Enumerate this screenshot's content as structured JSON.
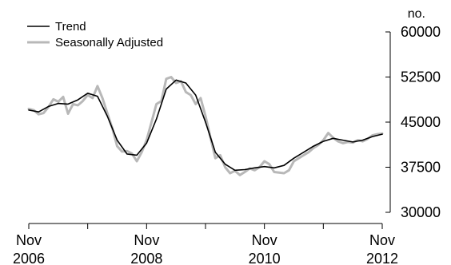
{
  "chart_data": {
    "type": "line",
    "title": "",
    "xlabel": "",
    "ylabel": "",
    "unit_label": "no.",
    "ylim": [
      30000,
      60000
    ],
    "yticks": [
      30000,
      37500,
      45000,
      52500,
      60000
    ],
    "ytick_labels": [
      "30000",
      "37500",
      "45000",
      "52500",
      "60000"
    ],
    "xlim": [
      "2006-11",
      "2012-11"
    ],
    "xtick_labels": [
      {
        "month": "Nov",
        "year": "2006",
        "x": "2006-11"
      },
      {
        "month": "Nov",
        "year": "2008",
        "x": "2008-11"
      },
      {
        "month": "Nov",
        "year": "2010",
        "x": "2010-11"
      },
      {
        "month": "Nov",
        "year": "2012",
        "x": "2012-11"
      }
    ],
    "grid": false,
    "legend_position": "top-left",
    "series": [
      {
        "name": "Trend",
        "color": "#000000",
        "x": [
          "2006-11",
          "2007-01",
          "2007-03",
          "2007-05",
          "2007-07",
          "2007-09",
          "2007-11",
          "2008-01",
          "2008-03",
          "2008-05",
          "2008-07",
          "2008-09",
          "2008-11",
          "2009-01",
          "2009-03",
          "2009-05",
          "2009-07",
          "2009-09",
          "2009-11",
          "2010-01",
          "2010-03",
          "2010-05",
          "2010-07",
          "2010-09",
          "2010-11",
          "2011-01",
          "2011-03",
          "2011-05",
          "2011-07",
          "2011-09",
          "2011-11",
          "2012-01",
          "2012-03",
          "2012-05",
          "2012-07",
          "2012-09",
          "2012-11"
        ],
        "values": [
          47000,
          46700,
          47600,
          48100,
          48000,
          48700,
          49800,
          49300,
          46000,
          42000,
          39700,
          39500,
          41500,
          45500,
          50500,
          52000,
          51500,
          49500,
          45000,
          40000,
          38000,
          37000,
          37100,
          37400,
          37600,
          37400,
          37800,
          39000,
          40000,
          41000,
          41800,
          42300,
          42000,
          41700,
          42000,
          42600,
          43000
        ]
      },
      {
        "name": "Seasonally Adjusted",
        "color": "#b8b8b8",
        "x": [
          "2006-11",
          "2006-12",
          "2007-01",
          "2007-02",
          "2007-03",
          "2007-04",
          "2007-05",
          "2007-06",
          "2007-07",
          "2007-08",
          "2007-09",
          "2007-10",
          "2007-11",
          "2007-12",
          "2008-01",
          "2008-02",
          "2008-03",
          "2008-04",
          "2008-05",
          "2008-06",
          "2008-07",
          "2008-08",
          "2008-09",
          "2008-10",
          "2008-11",
          "2008-12",
          "2009-01",
          "2009-02",
          "2009-03",
          "2009-04",
          "2009-05",
          "2009-06",
          "2009-07",
          "2009-08",
          "2009-09",
          "2009-10",
          "2009-11",
          "2009-12",
          "2010-01",
          "2010-02",
          "2010-03",
          "2010-04",
          "2010-05",
          "2010-06",
          "2010-07",
          "2010-08",
          "2010-09",
          "2010-10",
          "2010-11",
          "2010-12",
          "2011-01",
          "2011-02",
          "2011-03",
          "2011-04",
          "2011-05",
          "2011-06",
          "2011-07",
          "2011-08",
          "2011-09",
          "2011-10",
          "2011-11",
          "2011-12",
          "2012-01",
          "2012-02",
          "2012-03",
          "2012-04",
          "2012-05",
          "2012-06",
          "2012-07",
          "2012-08",
          "2012-09",
          "2012-10",
          "2012-11"
        ],
        "values": [
          47200,
          47000,
          46300,
          46500,
          47500,
          48800,
          48400,
          49200,
          46400,
          48000,
          47800,
          48500,
          49500,
          49000,
          51000,
          49000,
          46500,
          44000,
          41000,
          40100,
          40200,
          39800,
          38500,
          40000,
          42000,
          45000,
          48000,
          48500,
          52200,
          52500,
          51500,
          51800,
          50000,
          49500,
          48000,
          49000,
          46000,
          42500,
          39000,
          39500,
          37500,
          36500,
          36900,
          36200,
          36700,
          37300,
          37000,
          37500,
          38500,
          38000,
          36700,
          36600,
          36500,
          37000,
          38500,
          39000,
          39500,
          40000,
          40700,
          41200,
          42000,
          43200,
          42400,
          41800,
          41500,
          41700,
          41600,
          42000,
          41800,
          42200,
          42800,
          43000,
          43100
        ]
      }
    ]
  }
}
